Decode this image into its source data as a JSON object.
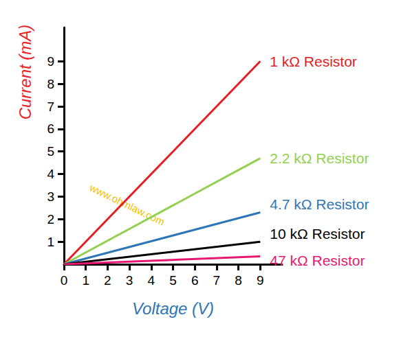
{
  "chart_data": {
    "type": "line",
    "x_label": "Voltage (V)",
    "y_label": "Current (mA)",
    "annotations": [
      {
        "text": "www.ohmlaw.com"
      }
    ],
    "x": [
      0,
      9
    ],
    "series": [
      {
        "name": "1 kΩ Resistor",
        "color": "#e31e24",
        "values": [
          0,
          9
        ]
      },
      {
        "name": "2.2 kΩ Resistor",
        "color": "#92d050",
        "values": [
          0,
          4.7
        ]
      },
      {
        "name": "4.7 kΩ Resistor",
        "color": "#2e75b6",
        "values": [
          0,
          2.3
        ]
      },
      {
        "name": "10 kΩ Resistor",
        "color": "#000000",
        "values": [
          0,
          1.0
        ]
      },
      {
        "name": "47 kΩ Resistor",
        "color": "#e6196e",
        "values": [
          0,
          0.35
        ]
      }
    ],
    "xlim": [
      0,
      10
    ],
    "ylim": [
      0,
      10.5
    ],
    "xticks": [
      0,
      1,
      2,
      3,
      4,
      5,
      6,
      7,
      8,
      9
    ],
    "yticks": [
      1,
      2,
      3,
      4,
      5,
      6,
      7,
      8,
      9
    ],
    "grid": false
  }
}
